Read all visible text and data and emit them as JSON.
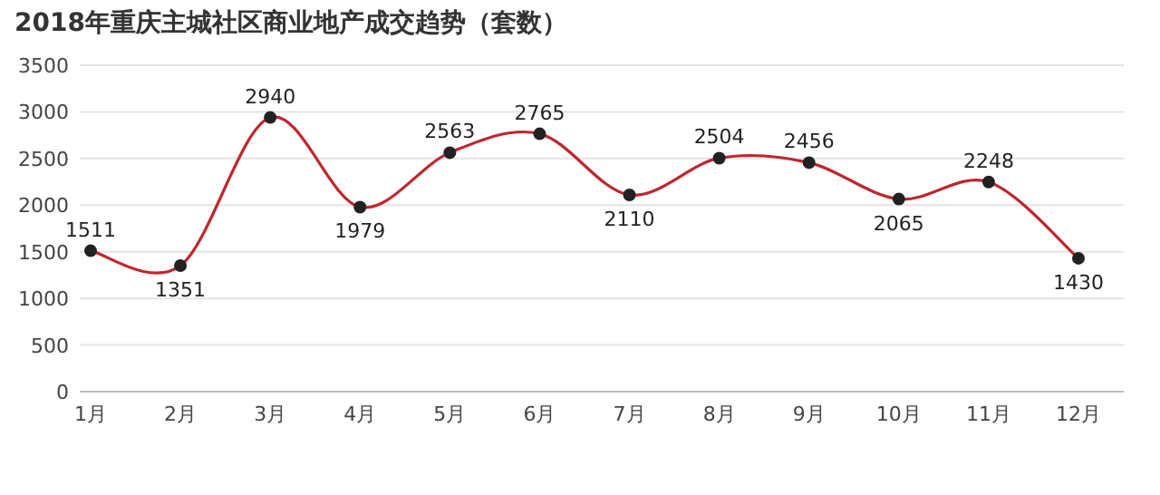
{
  "chart_data": {
    "type": "line",
    "title": "2018年重庆主城社区商业地产成交趋势（套数）",
    "categories": [
      "1月",
      "2月",
      "3月",
      "4月",
      "5月",
      "6月",
      "7月",
      "8月",
      "9月",
      "10月",
      "11月",
      "12月"
    ],
    "series": [
      {
        "color": "#c0262d",
        "values": [
          1511,
          1351,
          2940,
          1979,
          2563,
          2765,
          2110,
          2504,
          2456,
          2065,
          2248,
          1430
        ]
      }
    ],
    "ylim": [
      0,
      3500
    ],
    "yticks": [
      0,
      500,
      1000,
      1500,
      2000,
      2500,
      3000,
      3500
    ],
    "grid": "y",
    "marker": "circle",
    "line_style": "solid",
    "data_labels": true
  }
}
